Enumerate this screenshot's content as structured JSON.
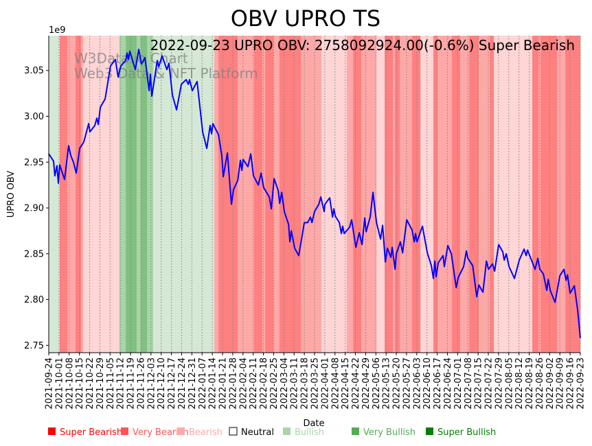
{
  "chart_data": {
    "type": "line",
    "title": "OBV UPRO TS",
    "subtitle": "2022-09-23 UPRO OBV: 2758092924.00(-0.6%) Super Bearish",
    "xlabel": "Date",
    "ylabel": "UPRO OBV",
    "y_offset_label": "1e9",
    "x_start_date": "2021-09-24",
    "xlim_days": [
      0,
      364
    ],
    "ylim": [
      2.742,
      3.088
    ],
    "y_ticks": [
      2.75,
      2.8,
      2.85,
      2.9,
      2.95,
      3.0,
      3.05
    ],
    "y_tick_labels": [
      "2.75",
      "2.80",
      "2.85",
      "2.90",
      "2.95",
      "3.00",
      "3.05"
    ],
    "x_tick_labels": [
      "2021-09-24",
      "2021-10-01",
      "2021-10-08",
      "2021-10-15",
      "2021-10-22",
      "2021-10-29",
      "2021-11-05",
      "2021-11-12",
      "2021-11-19",
      "2021-11-26",
      "2021-12-03",
      "2021-12-10",
      "2021-12-17",
      "2021-12-24",
      "2021-12-31",
      "2022-01-07",
      "2022-01-14",
      "2022-01-21",
      "2022-01-28",
      "2022-02-04",
      "2022-02-11",
      "2022-02-18",
      "2022-02-25",
      "2022-03-04",
      "2022-03-11",
      "2022-03-18",
      "2022-03-25",
      "2022-04-01",
      "2022-04-08",
      "2022-04-15",
      "2022-04-22",
      "2022-04-29",
      "2022-05-06",
      "2022-05-13",
      "2022-05-20",
      "2022-05-27",
      "2022-06-03",
      "2022-06-10",
      "2022-06-17",
      "2022-06-24",
      "2022-07-01",
      "2022-07-08",
      "2022-07-15",
      "2022-07-22",
      "2022-07-29",
      "2022-08-05",
      "2022-08-12",
      "2022-08-19",
      "2022-08-26",
      "2022-09-02",
      "2022-09-09",
      "2022-09-16",
      "2022-09-23"
    ],
    "x_tick_step_days": 7,
    "grid": "vertical dotted",
    "series": [
      {
        "name": "UPRO OBV",
        "color": "#0000ff",
        "points_day_value": [
          [
            0,
            2.959
          ],
          [
            3.3,
            2.951
          ],
          [
            4.2,
            2.935
          ],
          [
            5.6,
            2.946
          ],
          [
            6.6,
            2.927
          ],
          [
            7.5,
            2.947
          ],
          [
            10.8,
            2.931
          ],
          [
            13.6,
            2.968
          ],
          [
            15.1,
            2.957
          ],
          [
            16.9,
            2.95
          ],
          [
            18.8,
            2.938
          ],
          [
            21.2,
            2.965
          ],
          [
            24.0,
            2.972
          ],
          [
            27.3,
            2.992
          ],
          [
            28.2,
            2.983
          ],
          [
            31.5,
            2.99
          ],
          [
            32.9,
            2.998
          ],
          [
            33.9,
            2.991
          ],
          [
            35.3,
            3.01
          ],
          [
            38.6,
            3.019
          ],
          [
            42.3,
            3.055
          ],
          [
            45.6,
            3.062
          ],
          [
            47.5,
            3.043
          ],
          [
            49.4,
            3.055
          ],
          [
            52.7,
            3.061
          ],
          [
            53.6,
            3.069
          ],
          [
            54.6,
            3.062
          ],
          [
            55.5,
            3.071
          ],
          [
            59.3,
            3.051
          ],
          [
            61.6,
            3.073
          ],
          [
            63.5,
            3.057
          ],
          [
            65.9,
            3.064
          ],
          [
            68.7,
            3.028
          ],
          [
            69.6,
            3.046
          ],
          [
            70.6,
            3.022
          ],
          [
            74.3,
            3.061
          ],
          [
            75.3,
            3.054
          ],
          [
            77.6,
            3.066
          ],
          [
            80.9,
            3.051
          ],
          [
            82.3,
            3.058
          ],
          [
            84.7,
            3.023
          ],
          [
            87.5,
            3.007
          ],
          [
            90.8,
            3.035
          ],
          [
            94.1,
            3.04
          ],
          [
            95.5,
            3.035
          ],
          [
            96.4,
            3.04
          ],
          [
            98.3,
            3.028
          ],
          [
            101.6,
            3.038
          ],
          [
            105.4,
            2.983
          ],
          [
            108.2,
            2.965
          ],
          [
            110.5,
            2.99
          ],
          [
            111.5,
            2.981
          ],
          [
            112.4,
            2.992
          ],
          [
            116.2,
            2.98
          ],
          [
            118.5,
            2.957
          ],
          [
            119.5,
            2.934
          ],
          [
            122.3,
            2.96
          ],
          [
            125.1,
            2.904
          ],
          [
            126.5,
            2.92
          ],
          [
            129.4,
            2.93
          ],
          [
            131.2,
            2.952
          ],
          [
            132.2,
            2.941
          ],
          [
            133.1,
            2.953
          ],
          [
            136.4,
            2.945
          ],
          [
            138.3,
            2.959
          ],
          [
            140.2,
            2.935
          ],
          [
            143.5,
            2.925
          ],
          [
            145.4,
            2.938
          ],
          [
            147.2,
            2.922
          ],
          [
            151.0,
            2.912
          ],
          [
            152.4,
            2.899
          ],
          [
            154.3,
            2.932
          ],
          [
            157.1,
            2.919
          ],
          [
            158.1,
            2.905
          ],
          [
            159.5,
            2.917
          ],
          [
            161.3,
            2.896
          ],
          [
            164.2,
            2.882
          ],
          [
            165.1,
            2.863
          ],
          [
            166.1,
            2.875
          ],
          [
            168.4,
            2.856
          ],
          [
            171.2,
            2.848
          ],
          [
            175.0,
            2.884
          ],
          [
            177.3,
            2.884
          ],
          [
            179.2,
            2.89
          ],
          [
            180.2,
            2.884
          ],
          [
            182.0,
            2.896
          ],
          [
            184.9,
            2.904
          ],
          [
            186.3,
            2.912
          ],
          [
            188.6,
            2.896
          ],
          [
            189.1,
            2.904
          ],
          [
            192.4,
            2.911
          ],
          [
            194.3,
            2.89
          ],
          [
            195.2,
            2.899
          ],
          [
            196.2,
            2.891
          ],
          [
            199.0,
            2.884
          ],
          [
            200.4,
            2.872
          ],
          [
            201.3,
            2.88
          ],
          [
            202.3,
            2.872
          ],
          [
            206.0,
            2.879
          ],
          [
            207.4,
            2.887
          ],
          [
            210.3,
            2.857
          ],
          [
            212.6,
            2.873
          ],
          [
            214.5,
            2.86
          ],
          [
            216.4,
            2.889
          ],
          [
            217.3,
            2.874
          ],
          [
            220.1,
            2.89
          ],
          [
            222.0,
            2.917
          ],
          [
            224.4,
            2.884
          ],
          [
            227.2,
            2.866
          ],
          [
            228.6,
            2.881
          ],
          [
            230.5,
            2.841
          ],
          [
            231.9,
            2.856
          ],
          [
            234.3,
            2.846
          ],
          [
            235.2,
            2.857
          ],
          [
            237.1,
            2.833
          ],
          [
            238.0,
            2.85
          ],
          [
            240.8,
            2.863
          ],
          [
            242.3,
            2.851
          ],
          [
            245.1,
            2.887
          ],
          [
            248.8,
            2.876
          ],
          [
            250.3,
            2.863
          ],
          [
            251.2,
            2.872
          ],
          [
            252.1,
            2.863
          ],
          [
            255.9,
            2.88
          ],
          [
            259.2,
            2.851
          ],
          [
            262.0,
            2.837
          ],
          [
            263.4,
            2.823
          ],
          [
            264.4,
            2.842
          ],
          [
            265.3,
            2.825
          ],
          [
            266.7,
            2.84
          ],
          [
            270.0,
            2.848
          ],
          [
            270.9,
            2.836
          ],
          [
            273.3,
            2.859
          ],
          [
            275.7,
            2.85
          ],
          [
            279.0,
            2.813
          ],
          [
            280.4,
            2.824
          ],
          [
            284.1,
            2.836
          ],
          [
            286.0,
            2.853
          ],
          [
            287.0,
            2.845
          ],
          [
            290.3,
            2.837
          ],
          [
            293.1,
            2.803
          ],
          [
            294.5,
            2.816
          ],
          [
            297.3,
            2.808
          ],
          [
            299.7,
            2.842
          ],
          [
            301.1,
            2.833
          ],
          [
            303.9,
            2.839
          ],
          [
            305.3,
            2.831
          ],
          [
            308.1,
            2.86
          ],
          [
            310.9,
            2.852
          ],
          [
            311.9,
            2.843
          ],
          [
            313.3,
            2.85
          ],
          [
            315.2,
            2.836
          ],
          [
            318.9,
            2.823
          ],
          [
            322.2,
            2.843
          ],
          [
            325.5,
            2.855
          ],
          [
            326.9,
            2.848
          ],
          [
            327.9,
            2.854
          ],
          [
            329.8,
            2.846
          ],
          [
            333.0,
            2.833
          ],
          [
            334.9,
            2.845
          ],
          [
            336.3,
            2.833
          ],
          [
            338.7,
            2.828
          ],
          [
            341.0,
            2.81
          ],
          [
            342.0,
            2.822
          ],
          [
            343.4,
            2.81
          ],
          [
            346.7,
            2.797
          ],
          [
            350.0,
            2.826
          ],
          [
            352.8,
            2.833
          ],
          [
            354.2,
            2.821
          ],
          [
            355.2,
            2.827
          ],
          [
            357.0,
            2.807
          ],
          [
            359.9,
            2.815
          ],
          [
            362.2,
            2.788
          ],
          [
            364,
            2.758
          ]
        ]
      }
    ],
    "sentiment_bands_day_start_end_level": [
      [
        0,
        7.5,
        1
      ],
      [
        7.5,
        12.7,
        -3
      ],
      [
        12.7,
        18.3,
        -2
      ],
      [
        18.3,
        22.1,
        -3
      ],
      [
        22.1,
        23.5,
        -2
      ],
      [
        23.5,
        48.4,
        -1
      ],
      [
        48.4,
        52.7,
        2
      ],
      [
        52.7,
        60.2,
        3
      ],
      [
        60.2,
        63,
        2
      ],
      [
        63,
        67.3,
        3
      ],
      [
        67.3,
        71.5,
        2
      ],
      [
        71.5,
        113.4,
        1
      ],
      [
        113.4,
        116.2,
        -2
      ],
      [
        116.2,
        129.3,
        -3
      ],
      [
        129.3,
        140.6,
        -2
      ],
      [
        140.6,
        146.3,
        -3
      ],
      [
        146.3,
        148.2,
        -2
      ],
      [
        148.2,
        153.8,
        -3
      ],
      [
        153.8,
        158,
        -2
      ],
      [
        158,
        172.6,
        -3
      ],
      [
        172.6,
        186.7,
        -2
      ],
      [
        186.7,
        204.1,
        -1
      ],
      [
        204.1,
        208.4,
        -2
      ],
      [
        208.4,
        214,
        -3
      ],
      [
        214,
        224.4,
        -2
      ],
      [
        224.4,
        230,
        -1
      ],
      [
        230,
        235.7,
        -3
      ],
      [
        235.7,
        237.1,
        -2
      ],
      [
        237.1,
        240.4,
        -3
      ],
      [
        240.4,
        248.8,
        -2
      ],
      [
        248.8,
        254.5,
        -3
      ],
      [
        254.5,
        263.4,
        -1
      ],
      [
        263.4,
        266.2,
        -3
      ],
      [
        266.2,
        276.1,
        -2
      ],
      [
        276.1,
        281.7,
        -3
      ],
      [
        281.7,
        287.9,
        -2
      ],
      [
        287.9,
        294.4,
        -3
      ],
      [
        294.4,
        302,
        -2
      ],
      [
        302,
        304.8,
        -3
      ],
      [
        304.8,
        331.1,
        -1
      ],
      [
        331.1,
        335.4,
        -3
      ],
      [
        335.4,
        336.8,
        -2
      ],
      [
        336.8,
        348.1,
        -3
      ],
      [
        348.1,
        353.7,
        -2
      ],
      [
        353.7,
        364,
        -3
      ]
    ],
    "band_colors": {
      "-3": "#ff8080",
      "-2": "#ffa8a8",
      "-1": "#ffd5d5",
      "1": "#d5e8d5",
      "2": "#a8d4a8",
      "3": "#80c080"
    },
    "legend_placement": "bottom",
    "legend": [
      {
        "label": "Super Bearish",
        "color": "#ff0000"
      },
      {
        "label": "Very Bearish",
        "color": "#ff5555"
      },
      {
        "label": "Bearish",
        "color": "#ffaaaa"
      },
      {
        "label": "Neutral",
        "color": "none"
      },
      {
        "label": "Bullish",
        "color": "#aad4aa"
      },
      {
        "label": "Very Bullish",
        "color": "#55aa55"
      },
      {
        "label": "Super Bullish",
        "color": "#008000"
      }
    ],
    "watermark": [
      "W3Data.io Chart",
      "Web3 Data & NFT Platform"
    ]
  }
}
